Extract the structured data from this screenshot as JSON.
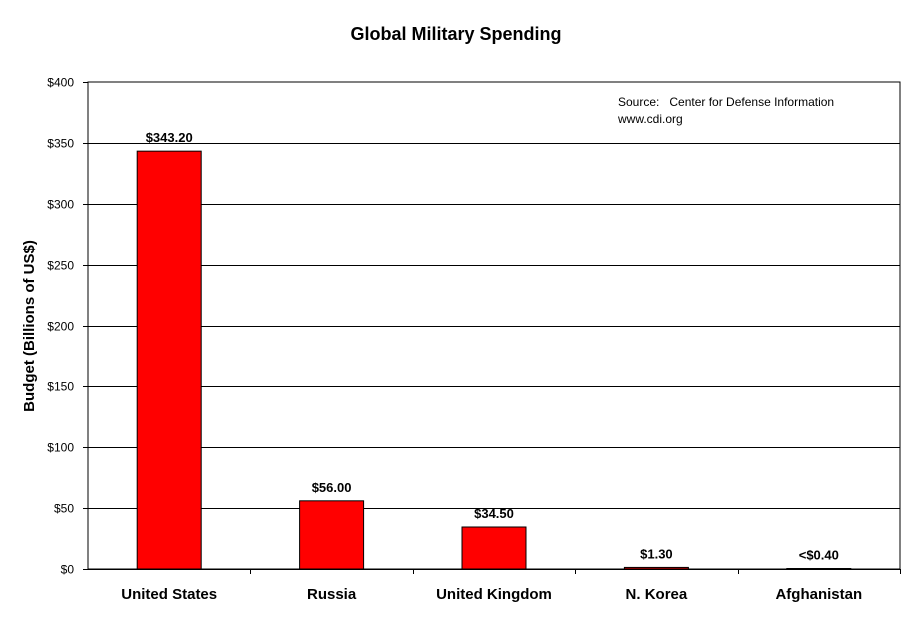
{
  "chart_data": {
    "type": "bar",
    "title": "Global Military Spending",
    "xlabel": "",
    "ylabel": "Budget (Billions of US$)",
    "categories": [
      "United States",
      "Russia",
      "United Kingdom",
      "N. Korea",
      "Afghanistan"
    ],
    "values": [
      343.2,
      56.0,
      34.5,
      1.3,
      0.4
    ],
    "data_labels": [
      "$343.20",
      "$56.00",
      "$34.50",
      "$1.30",
      "<$0.40"
    ],
    "ylim": [
      0,
      400
    ],
    "yticks": [
      0,
      50,
      100,
      150,
      200,
      250,
      300,
      350,
      400
    ],
    "ytick_labels": [
      "$0",
      "$50",
      "$100",
      "$150",
      "$200",
      "$250",
      "$300",
      "$350",
      "$400"
    ],
    "grid": true,
    "bar_color": "#ff0000",
    "annotation": {
      "line1": "Source:   Center for Defense Information",
      "line2": "www.cdi.org"
    }
  }
}
